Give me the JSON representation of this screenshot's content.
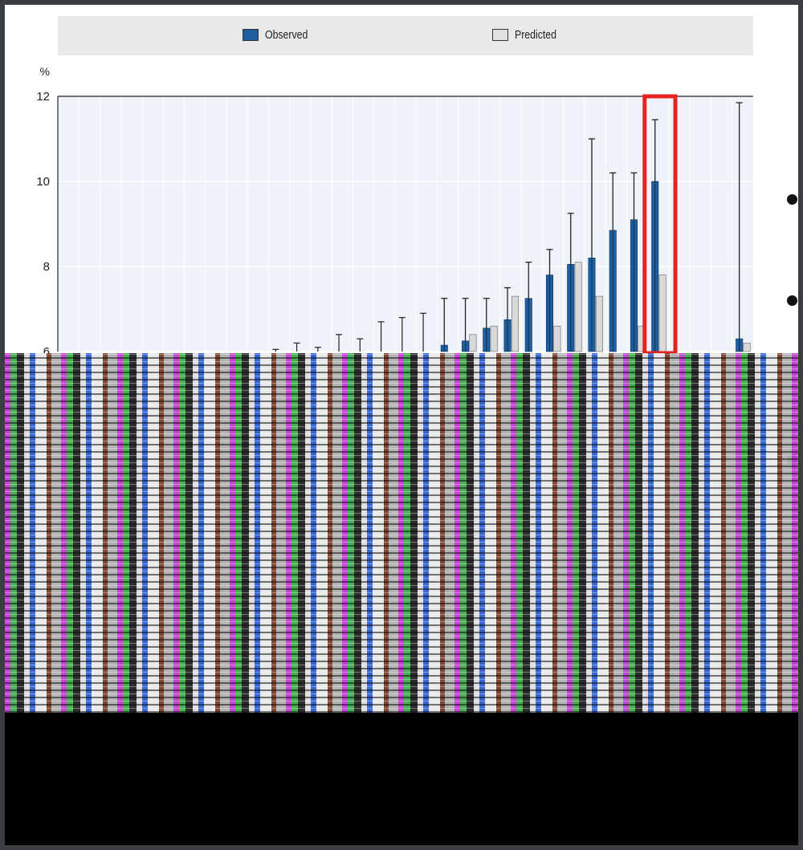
{
  "legend": {
    "observed_label": "Observed",
    "predicted_label": "Predicted"
  },
  "colors": {
    "observed": "#1f5fa0",
    "predicted": "#d9d9d9",
    "highlight": "#e8231f",
    "plot_bg": "#eef3f9"
  },
  "chart_data": {
    "type": "bar",
    "ylabel": "%",
    "ylim": [
      6,
      12
    ],
    "yticks": [
      6,
      8,
      10,
      12
    ],
    "grid": true,
    "legend_position": "top",
    "series": [
      {
        "name": "Observed",
        "values": [
          null,
          null,
          null,
          null,
          null,
          null,
          null,
          null,
          null,
          null,
          null,
          null,
          null,
          null,
          null,
          null,
          null,
          null,
          6.15,
          6.25,
          6.55,
          6.75,
          7.25,
          7.8,
          8.05,
          8.2,
          8.85,
          9.1,
          10.0,
          null,
          null,
          null,
          6.3
        ],
        "error_upper": [
          null,
          null,
          null,
          null,
          null,
          null,
          null,
          null,
          null,
          null,
          null,
          null,
          null,
          null,
          null,
          null,
          null,
          null,
          7.25,
          7.25,
          7.25,
          7.5,
          8.1,
          8.4,
          9.25,
          11.0,
          10.2,
          10.2,
          11.45,
          null,
          null,
          null,
          11.85
        ]
      },
      {
        "name": "Predicted",
        "values": [
          null,
          null,
          null,
          null,
          null,
          null,
          null,
          null,
          null,
          null,
          null,
          null,
          null,
          null,
          null,
          null,
          null,
          null,
          null,
          6.4,
          6.6,
          7.3,
          null,
          6.6,
          8.1,
          7.3,
          null,
          6.6,
          7.8,
          6.0,
          null,
          null,
          6.2
        ]
      }
    ],
    "highlight_index": 28
  }
}
